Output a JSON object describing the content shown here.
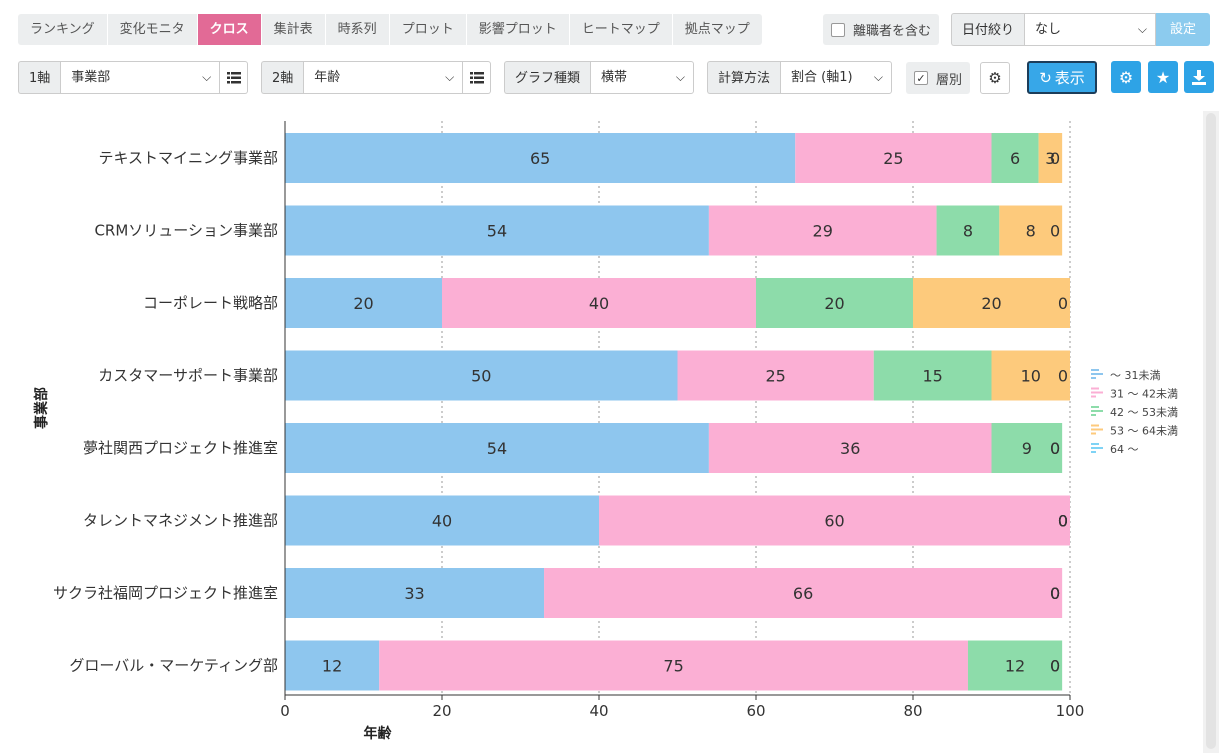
{
  "tabs": [
    "ランキング",
    "変化モニタ",
    "クロス",
    "集計表",
    "時系列",
    "プロット",
    "影響プロット",
    "ヒートマップ",
    "拠点マップ"
  ],
  "active_tab": "クロス",
  "filters": {
    "include_retired_label": "離職者を含む",
    "date_filter_label": "日付絞り",
    "date_filter_value": "なし",
    "settings_button": "設定"
  },
  "controls": {
    "axis1_label": "1軸",
    "axis1_value": "事業部",
    "axis2_label": "2軸",
    "axis2_value": "年齢",
    "graph_type_label": "グラフ種類",
    "graph_type_value": "横帯",
    "calc_label": "計算方法",
    "calc_value": "割合 (軸1)",
    "layer_label": "層別",
    "layer_checked": true,
    "show_button": "表示"
  },
  "colors": {
    "accent": "#e26a96",
    "button_blue": "#2ea3e6",
    "series": [
      "#8ec6ee",
      "#fbafd4",
      "#8ddcaa",
      "#fdca7c",
      "#7fd3f5"
    ]
  },
  "chart_data": {
    "type": "bar",
    "orientation": "horizontal",
    "stacked": true,
    "categories": [
      "テキストマイニング事業部",
      "CRMソリューション事業部",
      "コーポレート戦略部",
      "カスタマーサポート事業部",
      "夢社関西プロジェクト推進室",
      "タレントマネジメント推進部",
      "サクラ社福岡プロジェクト推進室",
      "グローバル・マーケティング部"
    ],
    "series": [
      {
        "name": "～ 31未満",
        "values": [
          65,
          54,
          20,
          50,
          54,
          40,
          33,
          12
        ]
      },
      {
        "name": "31 ～ 42未満",
        "values": [
          25,
          29,
          40,
          25,
          36,
          60,
          66,
          75
        ]
      },
      {
        "name": "42 ～ 53未満",
        "values": [
          6,
          8,
          20,
          15,
          9,
          0,
          0,
          12
        ]
      },
      {
        "name": "53 ～ 64未満",
        "values": [
          3,
          8,
          20,
          10,
          0,
          0,
          0,
          0
        ]
      },
      {
        "name": "64 ～",
        "values": [
          0,
          0,
          0,
          0,
          0,
          0,
          0,
          0
        ]
      }
    ],
    "xlabel": "年齢",
    "ylabel": "事業部",
    "xlim": [
      0,
      100
    ],
    "xticks": [
      0,
      20,
      40,
      60,
      80,
      100
    ],
    "grid": true,
    "legend": "right"
  }
}
